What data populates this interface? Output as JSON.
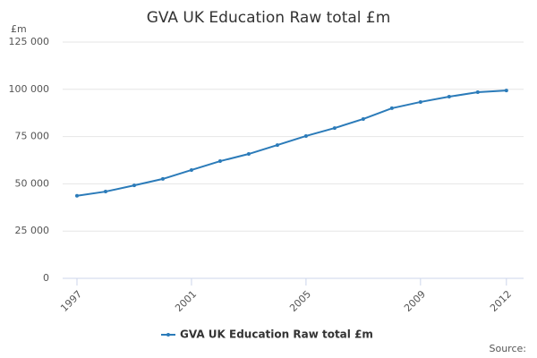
{
  "chart_data": {
    "type": "line",
    "title": "GVA UK Education Raw total £m",
    "y_unit": "£m",
    "source": "Source:",
    "x": [
      1997,
      1998,
      1999,
      2000,
      2001,
      2002,
      2003,
      2004,
      2005,
      2006,
      2007,
      2008,
      2009,
      2010,
      2011,
      2012
    ],
    "series": [
      {
        "name": "GVA UK Education Raw total £m",
        "color": "#2b7bb9",
        "values": [
          43700,
          45900,
          49200,
          52600,
          57300,
          62000,
          65800,
          70500,
          75300,
          79500,
          84300,
          90000,
          93300,
          96100,
          98500,
          99400
        ]
      }
    ],
    "xlim": [
      1996.5,
      2012.6
    ],
    "xticks": [
      1997,
      2001,
      2005,
      2009,
      2012
    ],
    "ylim": [
      0,
      125000
    ],
    "yticks": [
      0,
      {
        "value": 25000,
        "label": "25 000"
      },
      {
        "value": 50000,
        "label": "50 000"
      },
      {
        "value": 75000,
        "label": "75 000"
      },
      {
        "value": 100000,
        "label": "100 000"
      },
      {
        "value": 125000,
        "label": "125 000"
      }
    ],
    "grid": true
  }
}
